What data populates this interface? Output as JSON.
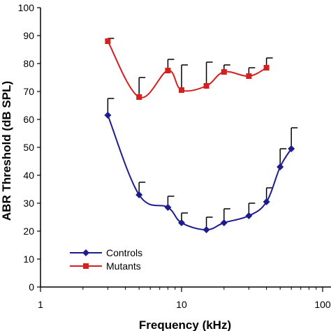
{
  "chart_data": {
    "type": "line",
    "title": "",
    "xlabel": "Frequency (kHz)",
    "ylabel": "ABR Threshold (dB SPL)",
    "xscale": "log",
    "xlim": [
      1,
      100
    ],
    "ylim": [
      0,
      100
    ],
    "x_ticks": [
      1,
      10,
      100
    ],
    "x_tick_labels": [
      "1",
      "10",
      "100"
    ],
    "y_ticks": [
      0,
      10,
      20,
      30,
      40,
      50,
      60,
      70,
      80,
      90,
      100
    ],
    "y_tick_labels": [
      "0",
      "10",
      "20",
      "30",
      "40",
      "50",
      "60",
      "70",
      "80",
      "90",
      "100"
    ],
    "grid": false,
    "legend_position": "bottom-left",
    "error_bars": "upper only",
    "series": [
      {
        "name": "Controls",
        "color": "#1c1c8c",
        "marker": "diamond",
        "x": [
          3,
          5,
          8,
          10,
          15,
          20,
          30,
          40,
          50,
          60
        ],
        "y": [
          61.5,
          33,
          28.5,
          23,
          20.5,
          23,
          25.5,
          30.5,
          43,
          49.5
        ],
        "error_upper": [
          6,
          4.5,
          4,
          3.5,
          4.5,
          5,
          4.5,
          5,
          6.5,
          7.5
        ]
      },
      {
        "name": "Mutants",
        "color": "#d62020",
        "marker": "square",
        "x": [
          3,
          5,
          8,
          10,
          15,
          20,
          30,
          40
        ],
        "y": [
          88,
          68,
          77.5,
          70.5,
          72,
          77,
          75.5,
          78.5
        ],
        "error_upper": [
          1,
          7,
          4,
          9,
          8.5,
          2.5,
          3,
          3.5
        ]
      }
    ]
  }
}
